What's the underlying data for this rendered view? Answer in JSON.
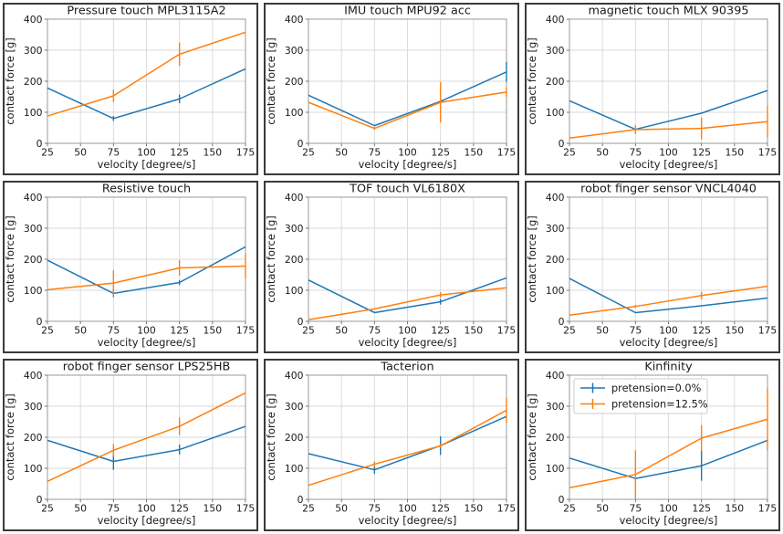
{
  "figure": {
    "rows": 3,
    "cols": 3,
    "background": "#ffffff",
    "panel_border_color": "#3a3a3a"
  },
  "colors": {
    "blue": "#1f77b4",
    "orange": "#ff7f0e",
    "gridline": "#d9d9d9",
    "spine": "#9a9a9a",
    "tick": "#6a6a6a",
    "text": "#1a1a1a",
    "legend_border": "#cccccc"
  },
  "chart_data": {
    "type": "line",
    "xlabel": "velocity [degree/s]",
    "ylabel": "contact force [g]",
    "x": [
      25,
      75,
      125,
      175
    ],
    "xticks": [
      25,
      50,
      75,
      100,
      125,
      150,
      175
    ],
    "yticks": [
      0,
      100,
      200,
      300,
      400
    ],
    "xlim": [
      25,
      175
    ],
    "ylim": [
      0,
      400
    ],
    "grid": true,
    "legend": {
      "on_chart": "Kinfinity",
      "location": "upper left",
      "entries": [
        {
          "label": "pretension=0.0%",
          "color": "#1f77b4"
        },
        {
          "label": "pretension=12.5%",
          "color": "#ff7f0e"
        }
      ]
    },
    "charts": [
      {
        "title": "Pressure touch MPL3115A2",
        "show_legend": false,
        "series": [
          {
            "name": "pretension=0.0%",
            "color": "#1f77b4",
            "values": [
              178,
              80,
              143,
              240
            ],
            "err": [
              0,
              8,
              14,
              0
            ]
          },
          {
            "name": "pretension=12.5%",
            "color": "#ff7f0e",
            "values": [
              88,
              153,
              287,
              358
            ],
            "err": [
              0,
              20,
              38,
              0
            ]
          }
        ]
      },
      {
        "title": "IMU touch MPU92 acc",
        "show_legend": false,
        "series": [
          {
            "name": "pretension=0.0%",
            "color": "#1f77b4",
            "values": [
              155,
              57,
              135,
              230
            ],
            "err": [
              0,
              0,
              0,
              32
            ]
          },
          {
            "name": "pretension=12.5%",
            "color": "#ff7f0e",
            "values": [
              132,
              48,
              132,
              165
            ],
            "err": [
              0,
              5,
              65,
              15
            ]
          }
        ]
      },
      {
        "title": "magnetic touch MLX 90395",
        "show_legend": false,
        "series": [
          {
            "name": "pretension=0.0%",
            "color": "#1f77b4",
            "values": [
              137,
              45,
              97,
              170
            ],
            "err": [
              0,
              0,
              0,
              0
            ]
          },
          {
            "name": "pretension=12.5%",
            "color": "#ff7f0e",
            "values": [
              17,
              44,
              48,
              70
            ],
            "err": [
              0,
              14,
              35,
              50
            ]
          }
        ]
      },
      {
        "title": "Resistive touch",
        "show_legend": false,
        "series": [
          {
            "name": "pretension=0.0%",
            "color": "#1f77b4",
            "values": [
              197,
              90,
              125,
              240
            ],
            "err": [
              0,
              12,
              8,
              0
            ]
          },
          {
            "name": "pretension=12.5%",
            "color": "#ff7f0e",
            "values": [
              102,
              123,
              172,
              178
            ],
            "err": [
              0,
              42,
              25,
              40
            ]
          }
        ]
      },
      {
        "title": "TOF touch VL6180X",
        "show_legend": false,
        "series": [
          {
            "name": "pretension=0.0%",
            "color": "#1f77b4",
            "values": [
              133,
              28,
              63,
              140
            ],
            "err": [
              0,
              0,
              9,
              0
            ]
          },
          {
            "name": "pretension=12.5%",
            "color": "#ff7f0e",
            "values": [
              5,
              40,
              85,
              108
            ],
            "err": [
              0,
              0,
              9,
              0
            ]
          }
        ]
      },
      {
        "title": "robot finger sensor VNCL4040",
        "show_legend": false,
        "series": [
          {
            "name": "pretension=0.0%",
            "color": "#1f77b4",
            "values": [
              138,
              28,
              50,
              75
            ],
            "err": [
              0,
              0,
              0,
              0
            ]
          },
          {
            "name": "pretension=12.5%",
            "color": "#ff7f0e",
            "values": [
              20,
              48,
              83,
              113
            ],
            "err": [
              0,
              5,
              12,
              0
            ]
          }
        ]
      },
      {
        "title": "robot finger sensor LPS25HB",
        "show_legend": false,
        "series": [
          {
            "name": "pretension=0.0%",
            "color": "#1f77b4",
            "values": [
              190,
              122,
              160,
              235
            ],
            "err": [
              0,
              27,
              16,
              0
            ]
          },
          {
            "name": "pretension=12.5%",
            "color": "#ff7f0e",
            "values": [
              58,
              158,
              235,
              343
            ],
            "err": [
              0,
              20,
              28,
              0
            ]
          }
        ]
      },
      {
        "title": "Tacterion",
        "show_legend": false,
        "series": [
          {
            "name": "pretension=0.0%",
            "color": "#1f77b4",
            "values": [
              147,
              95,
              173,
              267
            ],
            "err": [
              0,
              13,
              30,
              0
            ]
          },
          {
            "name": "pretension=12.5%",
            "color": "#ff7f0e",
            "values": [
              45,
              113,
              172,
              287
            ],
            "err": [
              0,
              9,
              6,
              40
            ]
          }
        ]
      },
      {
        "title": "Kinfinity",
        "show_legend": true,
        "series": [
          {
            "name": "pretension=0.0%",
            "color": "#1f77b4",
            "values": [
              133,
              67,
              108,
              190
            ],
            "err": [
              0,
              5,
              48,
              0
            ]
          },
          {
            "name": "pretension=12.5%",
            "color": "#ff7f0e",
            "values": [
              37,
              80,
              197,
              258
            ],
            "err": [
              0,
              78,
              42,
              100
            ]
          }
        ]
      }
    ]
  }
}
